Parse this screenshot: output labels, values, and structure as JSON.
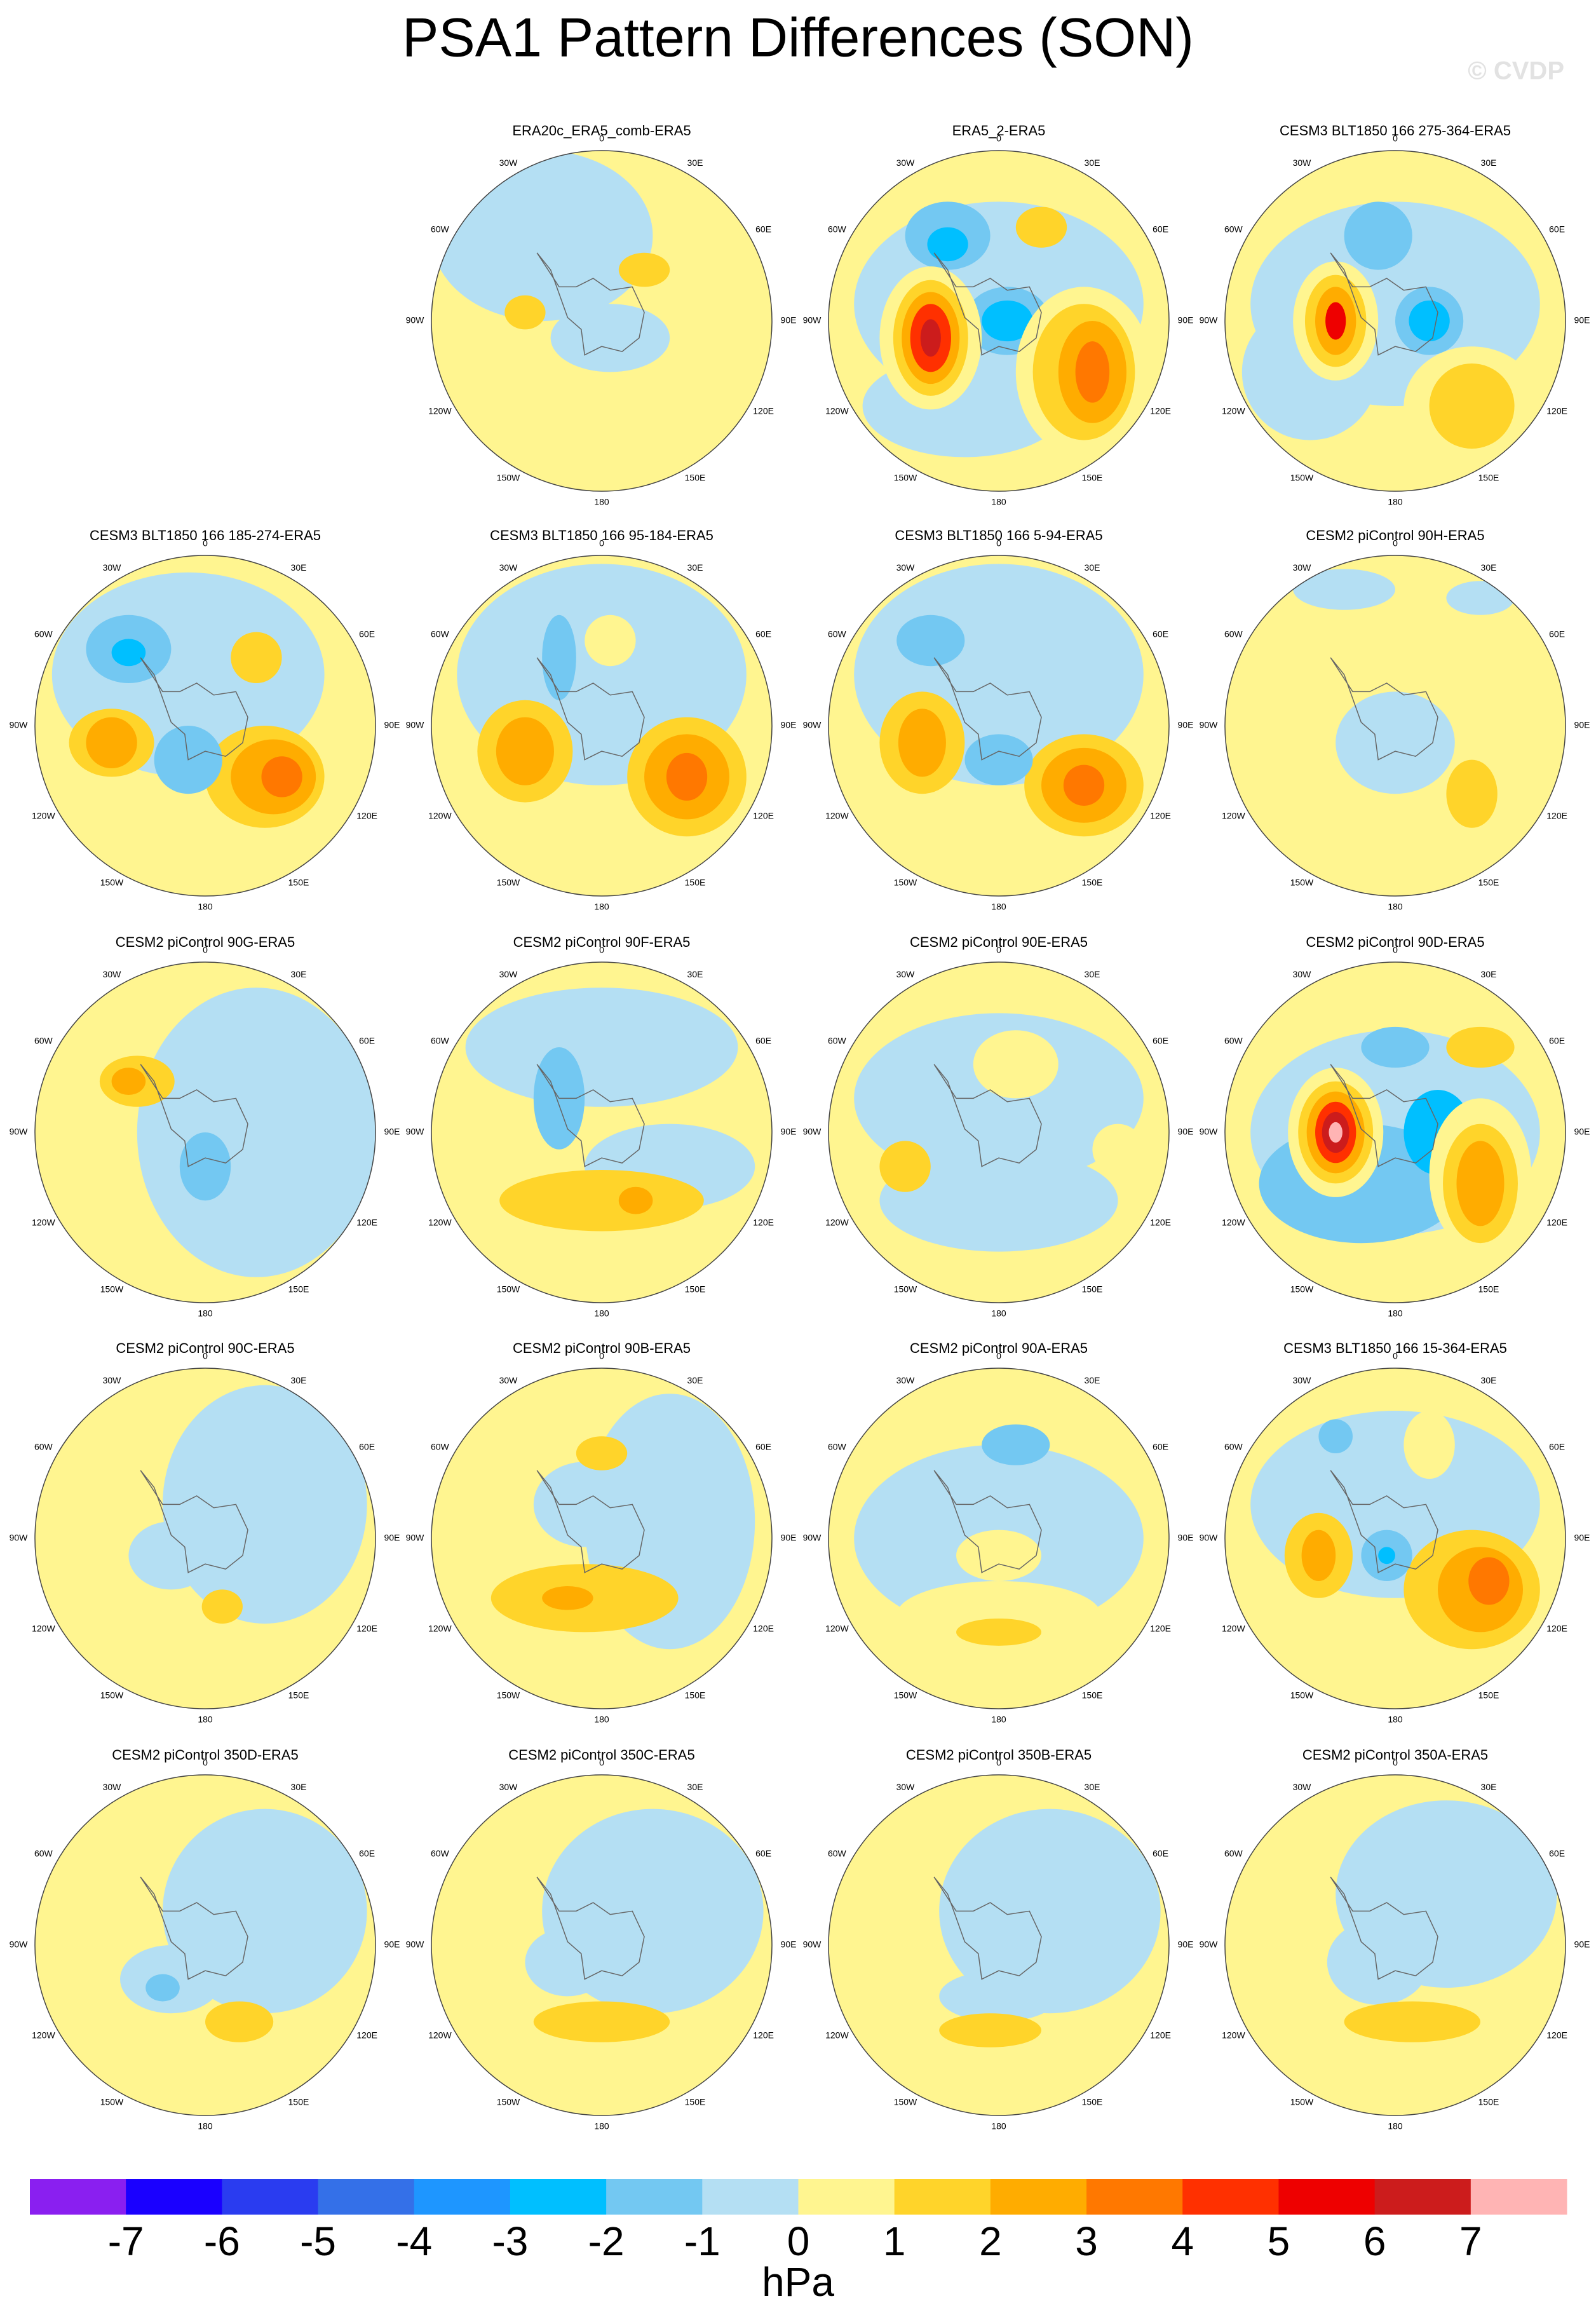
{
  "title": "PSA1 Pattern Differences (SON)",
  "watermark": "© CVDP",
  "lon_labels": [
    "0",
    "30E",
    "60E",
    "90E",
    "120E",
    "150E",
    "180",
    "150W",
    "120W",
    "90W",
    "60W",
    "30W"
  ],
  "panels": [
    {
      "title": "ERA20c_ERA5_comb-ERA5"
    },
    {
      "title": "ERA5_2-ERA5"
    },
    {
      "title": "CESM3 BLT1850 166 275-364-ERA5"
    },
    {
      "title": "CESM3 BLT1850 166 185-274-ERA5"
    },
    {
      "title": "CESM3 BLT1850 166 95-184-ERA5"
    },
    {
      "title": "CESM3 BLT1850 166 5-94-ERA5"
    },
    {
      "title": "CESM2 piControl 90H-ERA5"
    },
    {
      "title": "CESM2 piControl 90G-ERA5"
    },
    {
      "title": "CESM2 piControl 90F-ERA5"
    },
    {
      "title": "CESM2 piControl 90E-ERA5"
    },
    {
      "title": "CESM2 piControl 90D-ERA5"
    },
    {
      "title": "CESM2 piControl 90C-ERA5"
    },
    {
      "title": "CESM2 piControl 90B-ERA5"
    },
    {
      "title": "CESM2 piControl 90A-ERA5"
    },
    {
      "title": "CESM3 BLT1850 166 15-364-ERA5"
    },
    {
      "title": "CESM2 piControl 350D-ERA5"
    },
    {
      "title": "CESM2 piControl 350C-ERA5"
    },
    {
      "title": "CESM2 piControl 350B-ERA5"
    },
    {
      "title": "CESM2 piControl 350A-ERA5"
    }
  ],
  "colorbar": {
    "levels": [
      -7,
      -6,
      -5,
      -4,
      -3,
      -2,
      -1,
      0,
      1,
      2,
      3,
      4,
      5,
      6,
      7
    ],
    "colors": [
      "#8a1ff0",
      "#1a00ff",
      "#2a3cf0",
      "#3470e8",
      "#1e96ff",
      "#00bfff",
      "#73c8f2",
      "#b4dff3",
      "#fff590",
      "#ffd42a",
      "#ffac00",
      "#ff7800",
      "#ff3000",
      "#ee0000",
      "#cc1c1c",
      "#ffb4b4"
    ],
    "unit": "hPa"
  }
}
